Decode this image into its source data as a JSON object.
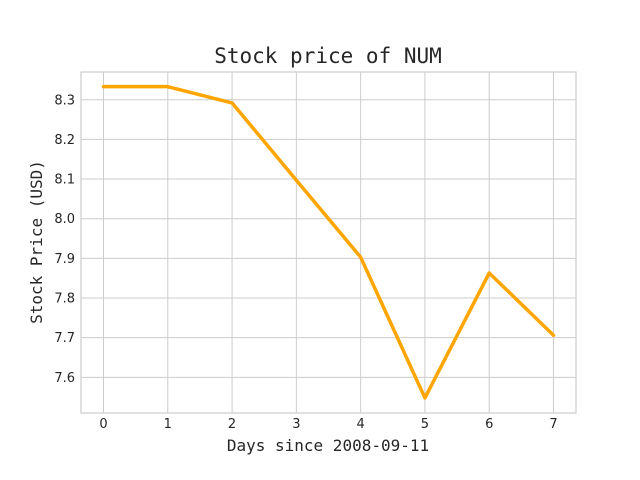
{
  "chart_data": {
    "type": "line",
    "title": "Stock price of NUM",
    "xlabel": "Days since 2008-09-11",
    "ylabel": "Stock Price (USD)",
    "x": [
      0,
      1,
      2,
      3,
      4,
      5,
      6,
      7
    ],
    "series": [
      {
        "values": [
          8.333,
          8.333,
          8.292,
          8.097,
          7.903,
          7.548,
          7.863,
          7.706
        ],
        "color": "#FFA500"
      }
    ],
    "xlim": [
      -0.35,
      7.35
    ],
    "ylim": [
      7.51,
      8.37
    ],
    "xticks": [
      0,
      1,
      2,
      3,
      4,
      5,
      6,
      7
    ],
    "yticks": [
      7.6,
      7.7,
      7.8,
      7.9,
      8.0,
      8.1,
      8.2,
      8.3
    ],
    "grid": true,
    "legend": "none"
  }
}
